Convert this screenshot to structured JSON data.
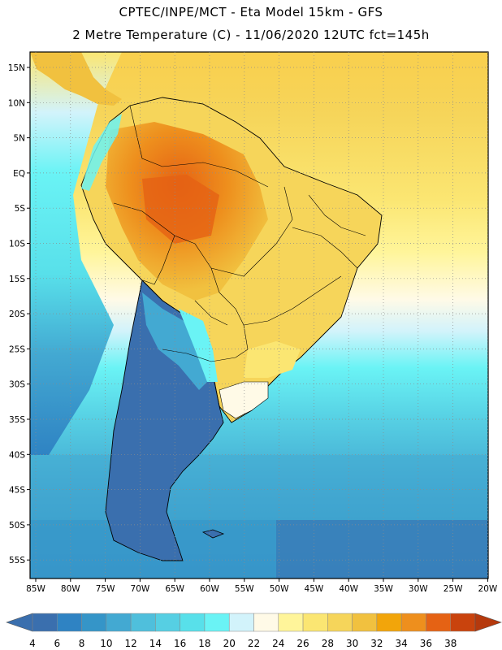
{
  "header": {
    "line1": "CPTEC/INPE/MCT -  Eta Model 15km - GFS",
    "line2": "2 Metre Temperature (C) - 11/06/2020 12UTC fct=145h"
  },
  "map": {
    "latitude_labels": [
      "15N",
      "10N",
      "5N",
      "EQ",
      "5S",
      "10S",
      "15S",
      "20S",
      "25S",
      "30S",
      "35S",
      "40S",
      "45S",
      "50S",
      "55S"
    ],
    "longitude_labels": [
      "85W",
      "80W",
      "75W",
      "70W",
      "65W",
      "60W",
      "55W",
      "50W",
      "45W",
      "40W",
      "35W",
      "30W",
      "25W",
      "20W"
    ],
    "gridlines": "dotted"
  },
  "colorbar": {
    "labels": [
      "4",
      "6",
      "8",
      "10",
      "12",
      "14",
      "16",
      "18",
      "20",
      "22",
      "24",
      "26",
      "28",
      "30",
      "32",
      "34",
      "36",
      "38"
    ],
    "colors": [
      "#3a6fae",
      "#2f83c3",
      "#3595c8",
      "#43a9d2",
      "#4fbfdc",
      "#56cfe3",
      "#58e0ea",
      "#6af3f5",
      "#d2f3fb",
      "#fffae7",
      "#fff59a",
      "#fbe672",
      "#f6d55a",
      "#f1c13f",
      "#f2a50a",
      "#ee8f1d",
      "#e56214",
      "#c9430d"
    ],
    "low_color": "#3a6fae",
    "high_color": "#b5390d"
  }
}
